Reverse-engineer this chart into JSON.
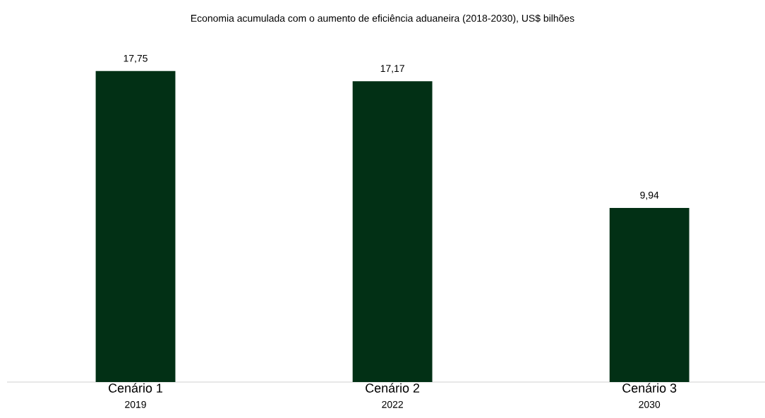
{
  "chart_data": {
    "type": "bar",
    "title": "Economia acumulada com o aumento de eficiência aduaneira (2018-2030), US$ bilhões",
    "categories": [
      "Cenário 1",
      "Cenário 2",
      "Cenário 3"
    ],
    "annotations": [
      "2019",
      "2022",
      "2030"
    ],
    "values": [
      17.75,
      17.17,
      9.94
    ],
    "value_labels": [
      "17,75",
      "17,17",
      "9,94"
    ],
    "color": "#023015"
  }
}
